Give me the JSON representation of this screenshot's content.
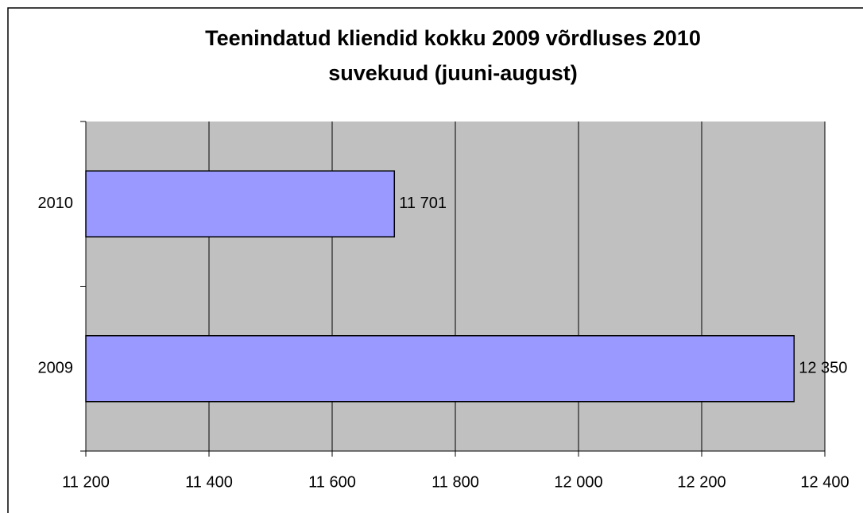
{
  "chart_data": {
    "type": "hbar",
    "title": [
      "Teenindatud kliendid kokku 2009 võrdluses 2010",
      "suvekuud (juuni-august)"
    ],
    "categories": [
      "2010",
      "2009"
    ],
    "values": [
      11701,
      12350
    ],
    "value_labels": [
      "11 701",
      "12 350"
    ],
    "color": "#9999ff",
    "xlim": [
      11200,
      12400
    ],
    "xticks": [
      {
        "value": 11200,
        "label": "11 200"
      },
      {
        "value": 11400,
        "label": "11 400"
      },
      {
        "value": 11600,
        "label": "11 600"
      },
      {
        "value": 11800,
        "label": "11 800"
      },
      {
        "value": 12000,
        "label": "12 000"
      },
      {
        "value": 12200,
        "label": "12 200"
      },
      {
        "value": 12400,
        "label": "12 400"
      }
    ],
    "grid": true
  }
}
